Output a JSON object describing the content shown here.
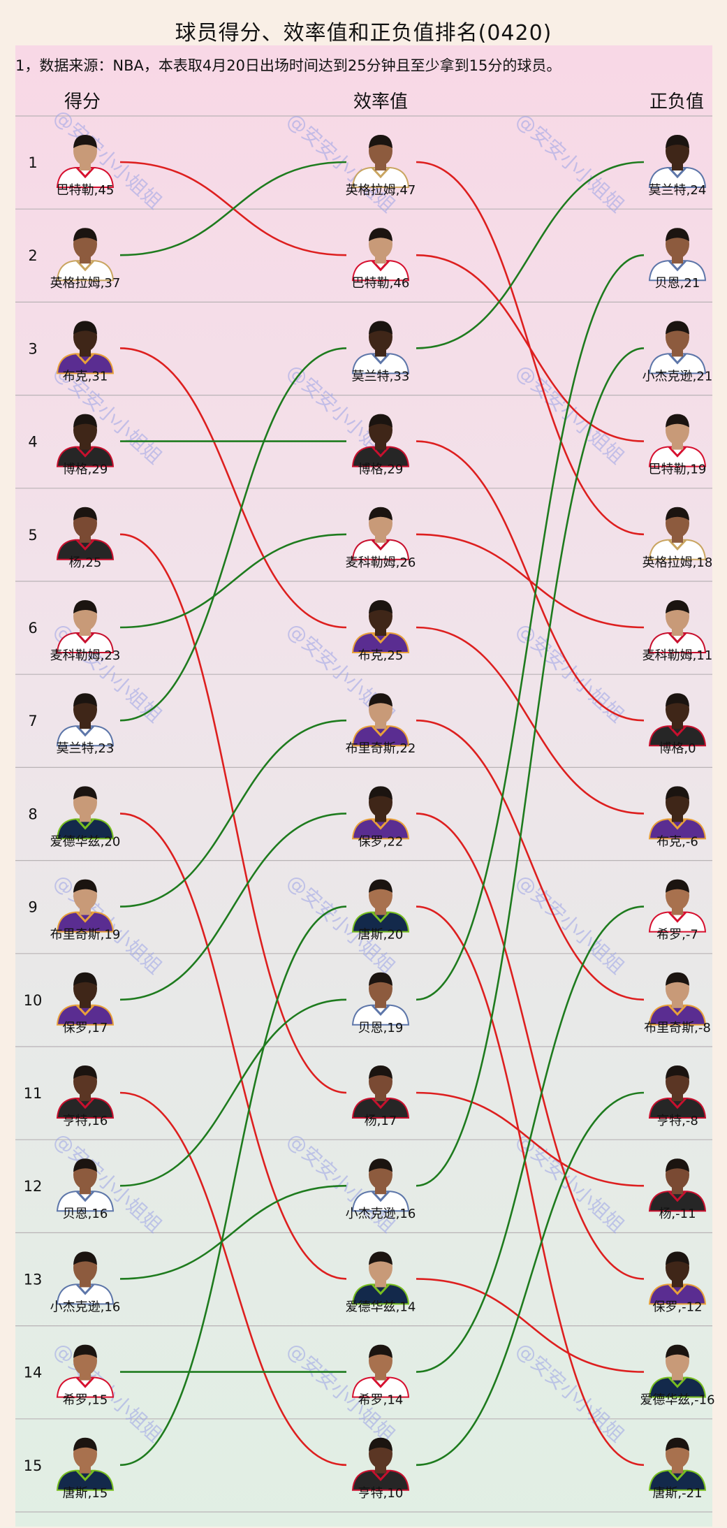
{
  "title": "球员得分、效率值和正负值排名(0420)",
  "note": "1，数据来源：NBA，本表取4月20日出场时间达到25分钟且至少拿到15分的球员。",
  "watermark": "@安安小小姐姐",
  "colors": {
    "up": "#1e7b1e",
    "down": "#dd1f1f",
    "divider": "#b9b3b6"
  },
  "chart_data": {
    "type": "table",
    "ranks": [
      "1",
      "2",
      "3",
      "4",
      "5",
      "6",
      "7",
      "8",
      "9",
      "10",
      "11",
      "12",
      "13",
      "14",
      "15"
    ],
    "columns": [
      {
        "header": "得分",
        "players": [
          {
            "name": "巴特勒",
            "value": 45,
            "label": "巴特勒,45",
            "team": "heat"
          },
          {
            "name": "英格拉姆",
            "value": 37,
            "label": "英格拉姆,37",
            "team": "pelicans"
          },
          {
            "name": "布克",
            "value": 31,
            "label": "布克,31",
            "team": "suns"
          },
          {
            "name": "博格",
            "value": 29,
            "label": "博格,29",
            "team": "hawks"
          },
          {
            "name": "杨",
            "value": 25,
            "label": "杨,25",
            "team": "hawks"
          },
          {
            "name": "麦科勒姆",
            "value": 23,
            "label": "麦科勒姆,23",
            "team": "pelicans_red"
          },
          {
            "name": "莫兰特",
            "value": 23,
            "label": "莫兰特,23",
            "team": "grizzlies"
          },
          {
            "name": "爱德华兹",
            "value": 20,
            "label": "爱德华兹,20",
            "team": "wolves"
          },
          {
            "name": "布里奇斯",
            "value": 19,
            "label": "布里奇斯,19",
            "team": "suns"
          },
          {
            "name": "保罗",
            "value": 17,
            "label": "保罗,17",
            "team": "suns"
          },
          {
            "name": "亨特",
            "value": 16,
            "label": "亨特,16",
            "team": "hawks"
          },
          {
            "name": "贝恩",
            "value": 16,
            "label": "贝恩,16",
            "team": "grizzlies"
          },
          {
            "name": "小杰克逊",
            "value": 16,
            "label": "小杰克逊,16",
            "team": "grizzlies"
          },
          {
            "name": "希罗",
            "value": 15,
            "label": "希罗,15",
            "team": "heat"
          },
          {
            "name": "唐斯",
            "value": 15,
            "label": "唐斯,15",
            "team": "wolves"
          }
        ]
      },
      {
        "header": "效率值",
        "players": [
          {
            "name": "英格拉姆",
            "value": 47,
            "label": "英格拉姆,47",
            "team": "pelicans"
          },
          {
            "name": "巴特勒",
            "value": 46,
            "label": "巴特勒,46",
            "team": "heat"
          },
          {
            "name": "莫兰特",
            "value": 33,
            "label": "莫兰特,33",
            "team": "grizzlies"
          },
          {
            "name": "博格",
            "value": 29,
            "label": "博格,29",
            "team": "hawks"
          },
          {
            "name": "麦科勒姆",
            "value": 26,
            "label": "麦科勒姆,26",
            "team": "pelicans_red"
          },
          {
            "name": "布克",
            "value": 25,
            "label": "布克,25",
            "team": "suns"
          },
          {
            "name": "布里奇斯",
            "value": 22,
            "label": "布里奇斯,22",
            "team": "suns"
          },
          {
            "name": "保罗",
            "value": 22,
            "label": "保罗,22",
            "team": "suns"
          },
          {
            "name": "唐斯",
            "value": 20,
            "label": "唐斯,20",
            "team": "wolves"
          },
          {
            "name": "贝恩",
            "value": 19,
            "label": "贝恩,19",
            "team": "grizzlies"
          },
          {
            "name": "杨",
            "value": 17,
            "label": "杨,17",
            "team": "hawks"
          },
          {
            "name": "小杰克逊",
            "value": 16,
            "label": "小杰克逊,16",
            "team": "grizzlies"
          },
          {
            "name": "爱德华兹",
            "value": 14,
            "label": "爱德华兹,14",
            "team": "wolves"
          },
          {
            "name": "希罗",
            "value": 14,
            "label": "希罗,14",
            "team": "heat"
          },
          {
            "name": "亨特",
            "value": 10,
            "label": "亨特,10",
            "team": "hawks"
          }
        ]
      },
      {
        "header": "正负值",
        "players": [
          {
            "name": "莫兰特",
            "value": 24,
            "label": "莫兰特,24",
            "team": "grizzlies"
          },
          {
            "name": "贝恩",
            "value": 21,
            "label": "贝恩,21",
            "team": "grizzlies"
          },
          {
            "name": "小杰克逊",
            "value": 21,
            "label": "小杰克逊,21",
            "team": "grizzlies"
          },
          {
            "name": "巴特勒",
            "value": 19,
            "label": "巴特勒,19",
            "team": "heat"
          },
          {
            "name": "英格拉姆",
            "value": 18,
            "label": "英格拉姆,18",
            "team": "pelicans"
          },
          {
            "name": "麦科勒姆",
            "value": 11,
            "label": "麦科勒姆,11",
            "team": "pelicans_red"
          },
          {
            "name": "博格",
            "value": 0,
            "label": "博格,0",
            "team": "hawks"
          },
          {
            "name": "布克",
            "value": -6,
            "label": "布克,-6",
            "team": "suns"
          },
          {
            "name": "希罗",
            "value": -7,
            "label": "希罗,-7",
            "team": "heat"
          },
          {
            "name": "布里奇斯",
            "value": -8,
            "label": "布里奇斯,-8",
            "team": "suns"
          },
          {
            "name": "亨特",
            "value": -8,
            "label": "亨特,-8",
            "team": "hawks"
          },
          {
            "name": "杨",
            "value": -11,
            "label": "杨,-11",
            "team": "hawks"
          },
          {
            "name": "保罗",
            "value": -12,
            "label": "保罗,-12",
            "team": "suns"
          },
          {
            "name": "爱德华兹",
            "value": -16,
            "label": "爱德华兹,-16",
            "team": "wolves"
          },
          {
            "name": "唐斯",
            "value": -21,
            "label": "唐斯,-21",
            "team": "wolves"
          }
        ]
      }
    ]
  }
}
